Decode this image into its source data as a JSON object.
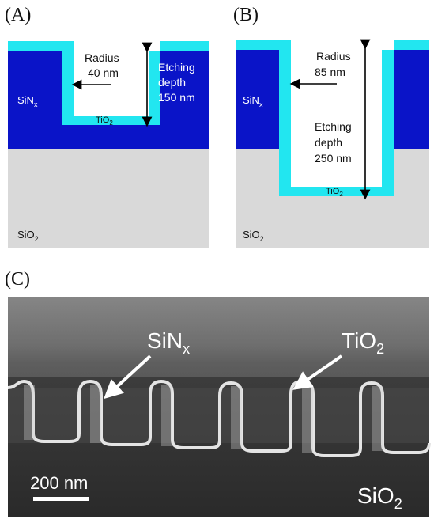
{
  "panels": [
    {
      "label": "(A)",
      "radius_text": [
        "Radius",
        "40 nm"
      ],
      "depth_text": [
        "Etching",
        "depth",
        "150 nm"
      ],
      "layer_labels": {
        "top": "SiN",
        "top_sub": "x",
        "bottom": "SiO",
        "bottom_sub": "2",
        "coating": "TiO",
        "coating_sub": "2"
      }
    },
    {
      "label": "(B)",
      "radius_text": [
        "Radius",
        "85 nm"
      ],
      "depth_text": [
        "Etching",
        "depth",
        "250 nm"
      ],
      "layer_labels": {
        "top": "SiN",
        "top_sub": "x",
        "bottom": "SiO",
        "bottom_sub": "2",
        "coating": "TiO",
        "coating_sub": "2"
      }
    },
    {
      "label": "(C)",
      "sem_labels": {
        "sinx": "SiN",
        "sinx_sub": "x",
        "tio2": "TiO",
        "tio2_sub": "2",
        "sio2": "SiO",
        "sio2_sub": "2"
      },
      "scale_bar": "200 nm"
    }
  ],
  "colors": {
    "sinx": "#0a14c8",
    "tio2": "#22e6f0",
    "sio2": "#d9d9d9",
    "sem_dark": "#3a3a3a",
    "sem_light": "#dcdcdc"
  }
}
